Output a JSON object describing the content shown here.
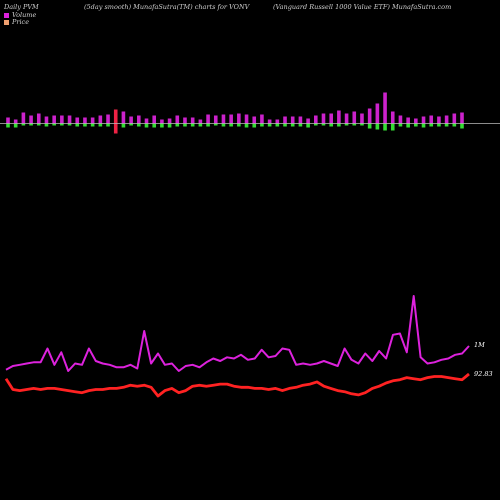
{
  "header": {
    "left": "Daily PVM",
    "center": "(5day smooth) MunafaSutra(TM) charts for VONV",
    "right": "(Vanguard Russell 1000 Value ETF) MunafaSutra.com"
  },
  "colors": {
    "background": "#000000",
    "volume_line": "#dd22dd",
    "price_line": "#ff2222",
    "bar_up": "#cc22cc",
    "bar_down": "#33dd33",
    "bar_highlight": "#ee2244",
    "baseline": "#bbbbbb"
  },
  "chart_data": [
    {
      "type": "bar",
      "title": "",
      "series": [
        {
          "up": [
            1,
            0,
            1,
            1,
            1,
            1,
            1,
            1,
            1,
            1,
            1,
            1,
            1,
            1,
            1,
            1,
            1,
            1,
            1,
            1,
            1,
            1,
            1,
            1,
            1,
            1,
            1,
            1,
            1,
            1,
            1,
            1,
            1,
            1,
            1,
            1,
            1,
            1,
            1,
            1,
            1,
            1,
            1,
            1,
            1,
            1,
            1,
            1,
            1,
            1,
            1,
            1,
            1,
            1,
            1,
            1,
            1,
            1,
            1,
            1,
            1,
            1,
            1,
            1,
            1,
            1,
            1
          ],
          "above": [
            6,
            4,
            11,
            8,
            10,
            7,
            8,
            8,
            8,
            6,
            6,
            6,
            8,
            9,
            14,
            12,
            7,
            8,
            5,
            8,
            4,
            5,
            8,
            6,
            6,
            4,
            9,
            8,
            9,
            9,
            10,
            9,
            7,
            9,
            4,
            4,
            7,
            7,
            7,
            5,
            8,
            10,
            10,
            13,
            10,
            12,
            10,
            15,
            20,
            31,
            12,
            8,
            6,
            5,
            7,
            8,
            7,
            8,
            10,
            11
          ],
          "below": [
            4,
            4,
            2,
            2,
            2,
            3,
            2,
            2,
            2,
            3,
            3,
            3,
            3,
            3,
            10,
            4,
            2,
            3,
            4,
            4,
            4,
            4,
            3,
            3,
            3,
            3,
            3,
            2,
            3,
            3,
            3,
            4,
            4,
            3,
            3,
            3,
            3,
            3,
            3,
            4,
            2,
            2,
            3,
            3,
            2,
            2,
            2,
            5,
            6,
            7,
            7,
            3,
            4,
            3,
            4,
            3,
            3,
            3,
            3,
            5
          ]
        }
      ]
    },
    {
      "type": "line",
      "title": "",
      "series": [
        {
          "name": "Volume",
          "end_label": "1M",
          "values": [
            0.28,
            0.31,
            0.32,
            0.33,
            0.34,
            0.34,
            0.45,
            0.32,
            0.42,
            0.27,
            0.33,
            0.32,
            0.45,
            0.35,
            0.33,
            0.32,
            0.3,
            0.3,
            0.32,
            0.29,
            0.59,
            0.33,
            0.41,
            0.32,
            0.33,
            0.27,
            0.31,
            0.32,
            0.3,
            0.34,
            0.37,
            0.35,
            0.38,
            0.37,
            0.4,
            0.36,
            0.37,
            0.44,
            0.38,
            0.39,
            0.45,
            0.44,
            0.32,
            0.33,
            0.32,
            0.33,
            0.35,
            0.33,
            0.31,
            0.45,
            0.36,
            0.33,
            0.41,
            0.35,
            0.43,
            0.37,
            0.56,
            0.57,
            0.42,
            0.87,
            0.38,
            0.33,
            0.34,
            0.36,
            0.37,
            0.4,
            0.41,
            0.47
          ]
        },
        {
          "name": "Price",
          "end_label": "92.83",
          "values": [
            92.4,
            91.4,
            91.3,
            91.4,
            91.5,
            91.4,
            91.5,
            91.5,
            91.4,
            91.3,
            91.2,
            91.1,
            91.3,
            91.4,
            91.4,
            91.5,
            91.5,
            91.6,
            91.8,
            91.7,
            91.8,
            91.6,
            90.8,
            91.3,
            91.5,
            91.1,
            91.3,
            91.7,
            91.8,
            91.7,
            91.8,
            91.9,
            91.9,
            91.7,
            91.6,
            91.6,
            91.5,
            91.5,
            91.4,
            91.5,
            91.3,
            91.5,
            91.6,
            91.8,
            91.9,
            92.1,
            91.7,
            91.5,
            91.3,
            91.2,
            91.0,
            90.9,
            91.1,
            91.5,
            91.7,
            92.0,
            92.2,
            92.3,
            92.5,
            92.4,
            92.3,
            92.5,
            92.6,
            92.6,
            92.5,
            92.4,
            92.3,
            92.83
          ]
        }
      ]
    }
  ]
}
